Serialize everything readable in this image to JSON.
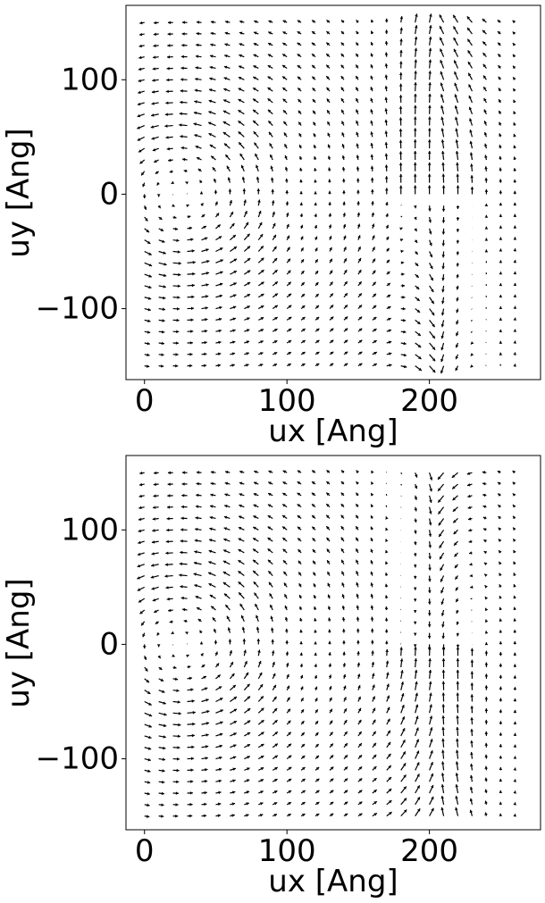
{
  "chart_data": [
    {
      "type": "quiver",
      "xlabel": "ux [Ang]",
      "ylabel": "uy [Ang]",
      "xticks": [
        0,
        100,
        200
      ],
      "yticks": [
        100,
        0,
        -100
      ],
      "xticklabels": [
        "0",
        "100",
        "200"
      ],
      "yticklabels": [
        "100",
        "0",
        "−100"
      ],
      "xlim": [
        -13,
        278
      ],
      "ylim": [
        -162,
        165
      ],
      "grid": false,
      "arrow_color": "#000000",
      "grid_x": {
        "start": 0,
        "step": 10,
        "count": 27
      },
      "grid_y": {
        "start": -150,
        "step": 10,
        "count": 31
      },
      "field": {
        "core_x": 25,
        "core_y": 0,
        "wall_x": 205,
        "wall_sign": 1,
        "core_scale": 60,
        "max_len": 10
      }
    },
    {
      "type": "quiver",
      "xlabel": "ux [Ang]",
      "ylabel": "uy [Ang]",
      "xticks": [
        0,
        100,
        200
      ],
      "yticks": [
        100,
        0,
        -100
      ],
      "xticklabels": [
        "0",
        "100",
        "200"
      ],
      "yticklabels": [
        "100",
        "0",
        "−100"
      ],
      "xlim": [
        -13,
        278
      ],
      "ylim": [
        -162,
        165
      ],
      "grid": false,
      "arrow_color": "#000000",
      "grid_x": {
        "start": 0,
        "step": 10,
        "count": 27
      },
      "grid_y": {
        "start": -150,
        "step": 10,
        "count": 31
      },
      "field": {
        "core_x": 25,
        "core_y": 0,
        "wall_x": 205,
        "wall_sign": -1,
        "core_scale": 60,
        "max_len": 10
      }
    }
  ]
}
